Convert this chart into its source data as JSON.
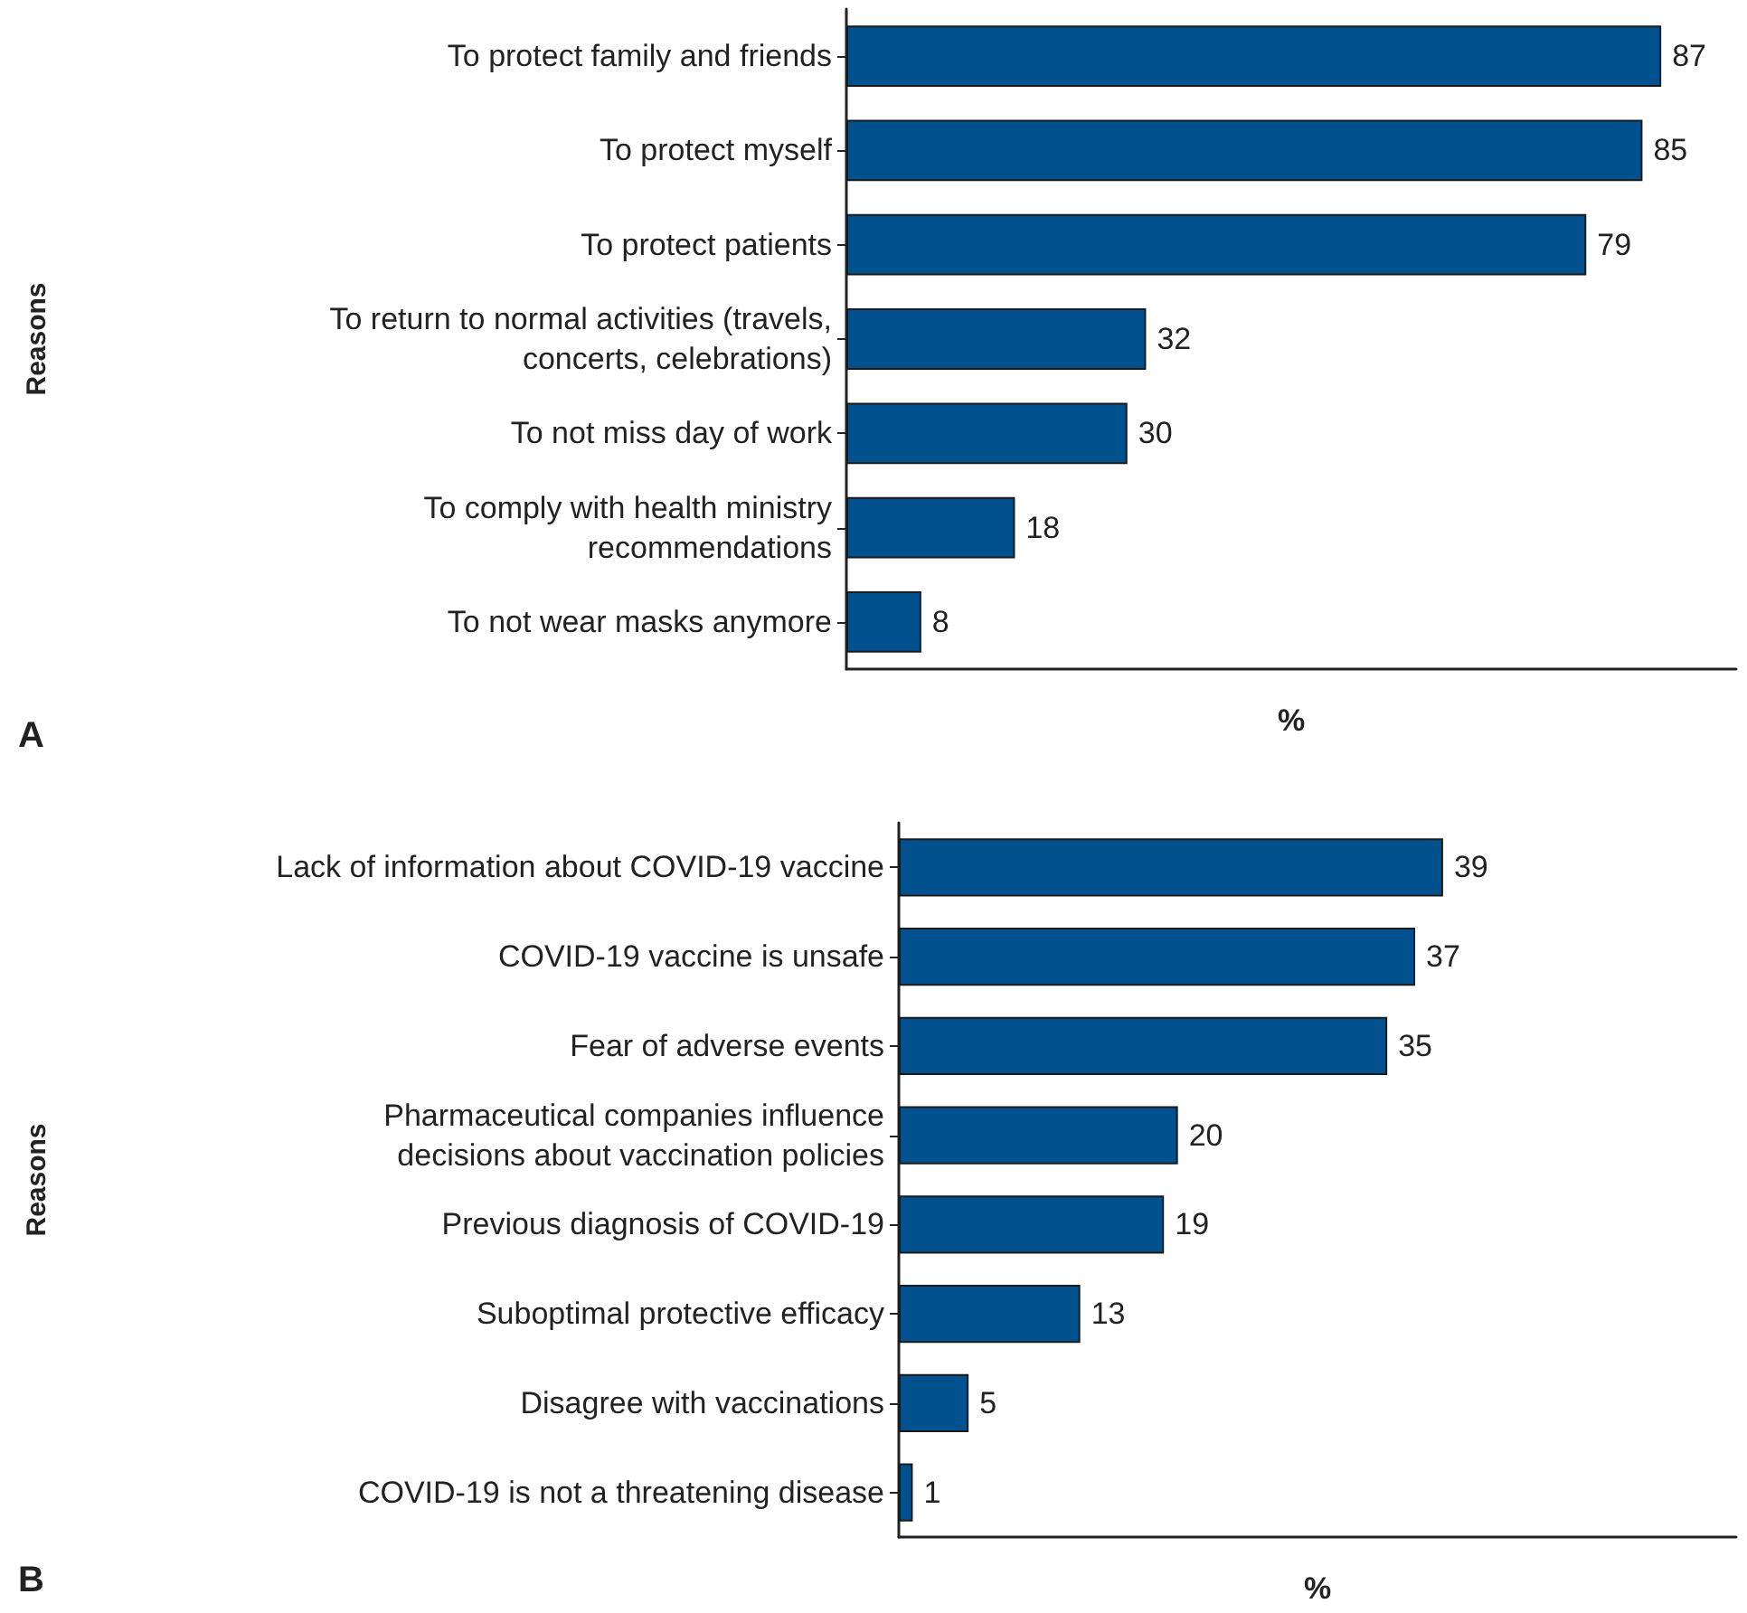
{
  "chart_data": [
    {
      "type": "bar",
      "orientation": "horizontal",
      "categories": [
        "To protect family and friends",
        "To protect myself",
        "To protect patients",
        "To return to normal activities (travels,\nconcerts, celebrations)",
        "To not miss day of work",
        "To comply with health ministry\nrecommendations",
        "To not wear masks anymore"
      ],
      "values": [
        87,
        85,
        79,
        32,
        30,
        18,
        8
      ],
      "color": "#00518e",
      "xlim": [
        0,
        95
      ],
      "tick_labels": "y",
      "xlabel": "%",
      "ylabel": "Reasons",
      "data_labels": true,
      "annotations": [
        "A"
      ]
    },
    {
      "type": "bar",
      "orientation": "horizontal",
      "categories": [
        "Lack of information about COVID-19 vaccine",
        "COVID-19 vaccine is unsafe",
        "Fear of adverse events",
        "Pharmaceutical companies influence\ndecisions about vaccination policies",
        "Previous diagnosis of COVID-19",
        "Suboptimal protective efficacy",
        "Disagree with vaccinations",
        "COVID-19 is not a threatening disease"
      ],
      "values": [
        39,
        37,
        35,
        20,
        19,
        13,
        5,
        1
      ],
      "color": "#00518e",
      "xlim": [
        0,
        60
      ],
      "tick_labels": "y",
      "xlabel": "%",
      "ylabel": "Reasons",
      "data_labels": true,
      "annotations": [
        "B"
      ]
    }
  ]
}
